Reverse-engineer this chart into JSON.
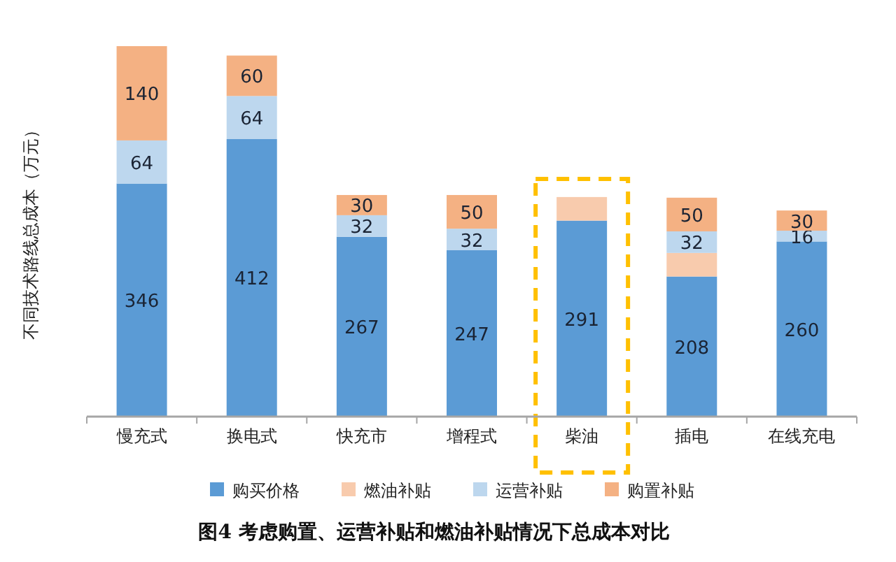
{
  "chart_data": {
    "type": "bar",
    "stacked": true,
    "title": "图4 考虑购置、运营补贴和燃油补贴情况下总成本对比",
    "ylabel": "不同技术路线总成本（万元）",
    "categories": [
      "慢充式",
      "换电式",
      "快充市",
      "增程式",
      "柴油",
      "插电",
      "在线充电"
    ],
    "series": [
      {
        "name": "购买价格",
        "color": "#5b9bd5",
        "values": [
          346,
          412,
          267,
          247,
          291,
          208,
          260
        ],
        "value_labels": [
          "346",
          "412",
          "267",
          "247",
          "291",
          "208",
          "260"
        ]
      },
      {
        "name": "燃油补贴",
        "color": "#f8cbad",
        "values": [
          null,
          null,
          null,
          null,
          35,
          35,
          null
        ],
        "value_labels": [
          null,
          null,
          null,
          null,
          null,
          null,
          null
        ]
      },
      {
        "name": "运营补贴",
        "color": "#bdd7ee",
        "values": [
          64,
          64,
          32,
          32,
          null,
          32,
          16
        ],
        "value_labels": [
          "64",
          "64",
          "32",
          "32",
          null,
          "32",
          "16"
        ]
      },
      {
        "name": "购置补贴",
        "color": "#f4b183",
        "values": [
          140,
          60,
          30,
          50,
          null,
          50,
          30
        ],
        "value_labels": [
          "140",
          "60",
          "30",
          "50",
          null,
          "50",
          "30"
        ]
      }
    ],
    "legend": "bottom"
  }
}
